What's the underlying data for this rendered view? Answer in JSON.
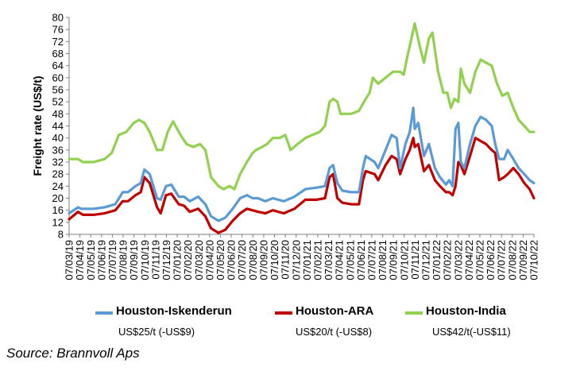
{
  "chart_data": {
    "type": "line",
    "title": "",
    "ylabel": "Freight rate (US$/t)",
    "xlabel": "",
    "ylim": [
      8,
      80
    ],
    "yticks": [
      8,
      12,
      16,
      20,
      24,
      28,
      32,
      36,
      40,
      44,
      48,
      52,
      56,
      60,
      64,
      68,
      72,
      76,
      80
    ],
    "x_start": "2019-03-07",
    "x_end": "2022-10-07",
    "x_tick_labels": [
      "07/03/19",
      "07/04/19",
      "07/05/19",
      "07/06/19",
      "07/07/19",
      "07/08/19",
      "07/09/19",
      "07/10/19",
      "07/11/19",
      "07/12/19",
      "07/01/20",
      "07/02/20",
      "07/03/20",
      "07/04/20",
      "07/05/20",
      "07/06/20",
      "07/07/20",
      "07/08/20",
      "07/09/20",
      "07/10/20",
      "07/11/20",
      "07/12/20",
      "07/01/21",
      "07/02/21",
      "07/03/21",
      "07/04/21",
      "07/05/21",
      "07/06/21",
      "07/07/21",
      "07/08/21",
      "07/09/21",
      "07/10/21",
      "07/11/21",
      "07/12/21",
      "07/01/22",
      "07/02/22",
      "07/03/22",
      "07/04/22",
      "07/05/22",
      "07/06/22",
      "07/07/22",
      "07/08/22",
      "07/09/22",
      "07/10/22"
    ],
    "grid": false,
    "legend_position": "bottom",
    "series": [
      {
        "name": "Houston-Iskenderun",
        "color": "#5b9bd5",
        "note": "US$25/t (-US$9)",
        "x": [
          "2019-03-07",
          "2019-04-01",
          "2019-04-10",
          "2019-05-15",
          "2019-06-15",
          "2019-07-15",
          "2019-08-05",
          "2019-08-20",
          "2019-09-10",
          "2019-09-25",
          "2019-10-05",
          "2019-10-20",
          "2019-11-10",
          "2019-11-20",
          "2019-12-05",
          "2019-12-20",
          "2020-01-10",
          "2020-01-25",
          "2020-02-10",
          "2020-03-05",
          "2020-03-25",
          "2020-04-10",
          "2020-05-01",
          "2020-05-20",
          "2020-06-10",
          "2020-07-01",
          "2020-07-20",
          "2020-08-05",
          "2020-08-20",
          "2020-09-10",
          "2020-10-01",
          "2020-11-01",
          "2020-12-01",
          "2021-01-01",
          "2021-02-01",
          "2021-02-25",
          "2021-03-10",
          "2021-03-20",
          "2021-04-01",
          "2021-04-15",
          "2021-05-10",
          "2021-06-01",
          "2021-06-12",
          "2021-06-20",
          "2021-07-15",
          "2021-07-25",
          "2021-08-15",
          "2021-09-01",
          "2021-09-15",
          "2021-09-25",
          "2021-10-10",
          "2021-10-22",
          "2021-11-01",
          "2021-11-05",
          "2021-11-15",
          "2021-12-01",
          "2021-12-15",
          "2022-01-01",
          "2022-01-15",
          "2022-02-01",
          "2022-02-10",
          "2022-02-20",
          "2022-02-28",
          "2022-03-08",
          "2022-03-15",
          "2022-03-25",
          "2022-04-10",
          "2022-04-25",
          "2022-05-10",
          "2022-05-25",
          "2022-06-10",
          "2022-06-20",
          "2022-07-01",
          "2022-07-15",
          "2022-07-25",
          "2022-08-10",
          "2022-08-25",
          "2022-09-10",
          "2022-09-25",
          "2022-10-07"
        ],
        "values": [
          15,
          17,
          16.5,
          16.5,
          17,
          18,
          22,
          22,
          24,
          25,
          29.5,
          28,
          20,
          19.5,
          24,
          24.5,
          20.5,
          20.5,
          19,
          20.5,
          18,
          14,
          12.5,
          13.5,
          16.5,
          20,
          21,
          20,
          20,
          19,
          20,
          19,
          20.5,
          23,
          23.5,
          24,
          30,
          31,
          25,
          22.5,
          22,
          22,
          30,
          34,
          32,
          30,
          36,
          41,
          40,
          30,
          38,
          42,
          50,
          43,
          45,
          34,
          38,
          30,
          27,
          24.5,
          26,
          24,
          43,
          45,
          32,
          30,
          38,
          44,
          47,
          46,
          44,
          38,
          33,
          33,
          36,
          33,
          30,
          28,
          26,
          25
        ]
      },
      {
        "name": "Houston-ARA",
        "color": "#c00000",
        "note": "US$20/t (-US$8)",
        "x": [
          "2019-03-07",
          "2019-04-01",
          "2019-04-15",
          "2019-05-15",
          "2019-06-15",
          "2019-07-15",
          "2019-08-05",
          "2019-08-20",
          "2019-09-10",
          "2019-09-25",
          "2019-10-05",
          "2019-10-20",
          "2019-11-10",
          "2019-11-20",
          "2019-12-05",
          "2019-12-20",
          "2020-01-10",
          "2020-01-25",
          "2020-02-10",
          "2020-03-05",
          "2020-03-25",
          "2020-04-10",
          "2020-05-01",
          "2020-05-20",
          "2020-06-10",
          "2020-07-01",
          "2020-07-20",
          "2020-08-05",
          "2020-08-20",
          "2020-09-10",
          "2020-10-01",
          "2020-11-01",
          "2020-12-01",
          "2021-01-01",
          "2021-02-01",
          "2021-02-25",
          "2021-03-10",
          "2021-03-20",
          "2021-04-01",
          "2021-04-15",
          "2021-05-10",
          "2021-06-01",
          "2021-06-12",
          "2021-06-20",
          "2021-07-15",
          "2021-07-25",
          "2021-08-15",
          "2021-09-01",
          "2021-09-15",
          "2021-09-25",
          "2021-10-10",
          "2021-10-22",
          "2021-11-01",
          "2021-11-05",
          "2021-11-15",
          "2021-12-01",
          "2021-12-15",
          "2022-01-01",
          "2022-01-15",
          "2022-02-01",
          "2022-02-10",
          "2022-02-20",
          "2022-02-28",
          "2022-03-08",
          "2022-03-15",
          "2022-03-25",
          "2022-04-10",
          "2022-04-25",
          "2022-05-10",
          "2022-05-25",
          "2022-06-10",
          "2022-06-20",
          "2022-07-01",
          "2022-07-15",
          "2022-07-25",
          "2022-08-10",
          "2022-08-25",
          "2022-09-10",
          "2022-09-25",
          "2022-10-07"
        ],
        "values": [
          13,
          15.5,
          14.5,
          14.5,
          15,
          16,
          19,
          19,
          21,
          22,
          27,
          25,
          17,
          15,
          21,
          21.5,
          18,
          17.5,
          15.5,
          16.5,
          14,
          10,
          8.5,
          9.5,
          12.5,
          15,
          16.5,
          16,
          15.5,
          15,
          16,
          15,
          16.5,
          19.5,
          19.5,
          20,
          27,
          28,
          20,
          18.5,
          18,
          18,
          26,
          29,
          28,
          26,
          31,
          34,
          33,
          28,
          33,
          36,
          40,
          37,
          38,
          29,
          31,
          26,
          24,
          22,
          22,
          21,
          24,
          32,
          31,
          28,
          34,
          40,
          39,
          38,
          36,
          35,
          26,
          27,
          28,
          30,
          28,
          25,
          23,
          20
        ]
      },
      {
        "name": "Houston-India",
        "color": "#92d050",
        "note": "US$42/t(-US$11)",
        "x": [
          "2019-03-07",
          "2019-04-01",
          "2019-04-15",
          "2019-05-15",
          "2019-06-15",
          "2019-07-05",
          "2019-07-25",
          "2019-08-15",
          "2019-09-05",
          "2019-09-20",
          "2019-10-05",
          "2019-10-20",
          "2019-11-10",
          "2019-11-25",
          "2019-12-10",
          "2019-12-25",
          "2020-01-15",
          "2020-02-01",
          "2020-02-20",
          "2020-03-10",
          "2020-03-25",
          "2020-04-10",
          "2020-05-01",
          "2020-05-15",
          "2020-06-01",
          "2020-06-15",
          "2020-07-01",
          "2020-07-20",
          "2020-08-05",
          "2020-08-15",
          "2020-09-01",
          "2020-09-15",
          "2020-10-01",
          "2020-10-20",
          "2020-11-05",
          "2020-11-20",
          "2020-12-10",
          "2021-01-01",
          "2021-01-20",
          "2021-02-10",
          "2021-02-25",
          "2021-03-10",
          "2021-03-20",
          "2021-04-01",
          "2021-04-10",
          "2021-05-10",
          "2021-06-01",
          "2021-06-15",
          "2021-07-01",
          "2021-07-10",
          "2021-07-25",
          "2021-08-15",
          "2021-09-05",
          "2021-09-25",
          "2021-10-05",
          "2021-10-15",
          "2021-10-25",
          "2021-11-05",
          "2021-11-20",
          "2021-12-01",
          "2021-12-15",
          "2021-12-25",
          "2022-01-10",
          "2022-01-25",
          "2022-02-05",
          "2022-02-15",
          "2022-02-25",
          "2022-03-08",
          "2022-03-15",
          "2022-03-25",
          "2022-04-10",
          "2022-04-25",
          "2022-05-10",
          "2022-05-25",
          "2022-06-10",
          "2022-06-25",
          "2022-07-10",
          "2022-07-25",
          "2022-08-10",
          "2022-08-25",
          "2022-09-10",
          "2022-09-25",
          "2022-10-07"
        ],
        "values": [
          33,
          33,
          32,
          32,
          33,
          35,
          41,
          42,
          45,
          46,
          45,
          42,
          36,
          36,
          42,
          45.5,
          41,
          38,
          37,
          38,
          36,
          27,
          24,
          23,
          24,
          23,
          28,
          32,
          35,
          36,
          37,
          38,
          40,
          40,
          41,
          36,
          38,
          40,
          41,
          42,
          44,
          52,
          53,
          52,
          48,
          48,
          49,
          52,
          55,
          60,
          58,
          60,
          62,
          62,
          61,
          67,
          72,
          78,
          70,
          65,
          73,
          75,
          62,
          55,
          55,
          50,
          53,
          52,
          63,
          58,
          55,
          62,
          66,
          65,
          64,
          58,
          54,
          55,
          50,
          46,
          44,
          42,
          42
        ]
      }
    ]
  },
  "source": "Source: Brannvoll Aps"
}
